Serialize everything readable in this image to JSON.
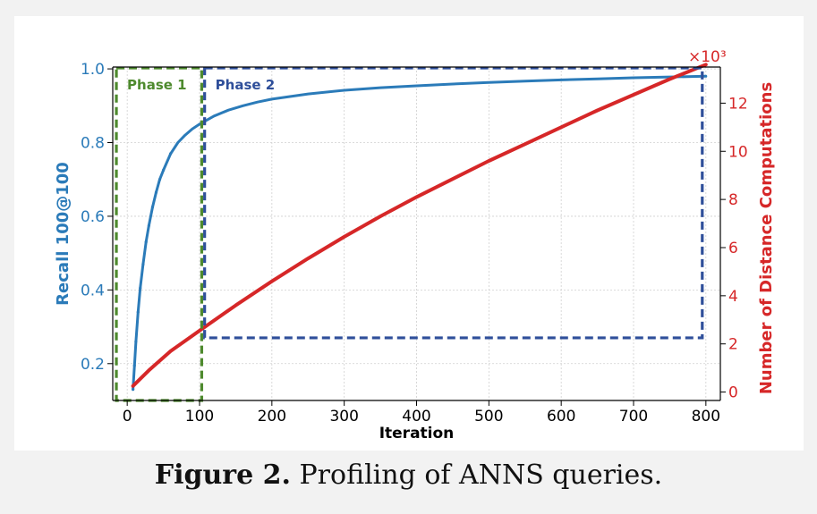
{
  "caption": {
    "label": "Figure 2.",
    "text": "Profiling of ANNS queries."
  },
  "colors": {
    "recall": "#2b7bb9",
    "distance": "#d62728",
    "phase1": "#4e8a2e",
    "phase2": "#2f4f9a"
  },
  "chart_data": {
    "type": "line",
    "xlabel": "Iteration",
    "ylabel_left": "Recall 100@100",
    "ylabel_right": "Number of Distance Computations",
    "right_axis_multiplier": "×10³",
    "xlim": [
      -20,
      820
    ],
    "ylim_left": [
      0.1,
      1.005
    ],
    "ylim_right": [
      -0.35,
      13.5
    ],
    "xticks": [
      0,
      100,
      200,
      300,
      400,
      500,
      600,
      700,
      800
    ],
    "yticks_left": [
      0.2,
      0.4,
      0.6,
      0.8,
      1.0
    ],
    "yticks_right": [
      0,
      2,
      4,
      6,
      8,
      10,
      12
    ],
    "grid": true,
    "series": [
      {
        "name": "Recall 100@100",
        "axis": "left",
        "x": [
          8,
          10,
          12,
          15,
          18,
          22,
          26,
          30,
          35,
          40,
          45,
          50,
          60,
          70,
          80,
          90,
          100,
          120,
          140,
          160,
          180,
          200,
          250,
          300,
          350,
          400,
          450,
          500,
          550,
          600,
          650,
          700,
          750,
          800
        ],
        "values": [
          0.13,
          0.195,
          0.26,
          0.34,
          0.405,
          0.47,
          0.53,
          0.575,
          0.625,
          0.665,
          0.7,
          0.725,
          0.77,
          0.8,
          0.82,
          0.837,
          0.85,
          0.872,
          0.888,
          0.9,
          0.91,
          0.918,
          0.932,
          0.942,
          0.949,
          0.954,
          0.959,
          0.963,
          0.967,
          0.97,
          0.973,
          0.976,
          0.978,
          0.98
        ]
      },
      {
        "name": "Number of Distance Computations",
        "axis": "right",
        "x": [
          8,
          30,
          60,
          100,
          150,
          200,
          250,
          300,
          350,
          400,
          450,
          500,
          550,
          600,
          650,
          700,
          750,
          800
        ],
        "values": [
          0.25,
          0.9,
          1.7,
          2.55,
          3.6,
          4.6,
          5.55,
          6.45,
          7.3,
          8.1,
          8.85,
          9.6,
          10.3,
          11.0,
          11.7,
          12.35,
          13.0,
          13.6
        ]
      }
    ],
    "annotations": [
      {
        "name": "phase-1",
        "text": "Phase 1",
        "x_range": [
          -15,
          103
        ],
        "y_range": [
          0.1,
          1.0
        ]
      },
      {
        "name": "phase-2",
        "text": "Phase 2",
        "x_range": [
          107,
          795
        ],
        "y_range": [
          0.27,
          1.0
        ]
      }
    ]
  }
}
